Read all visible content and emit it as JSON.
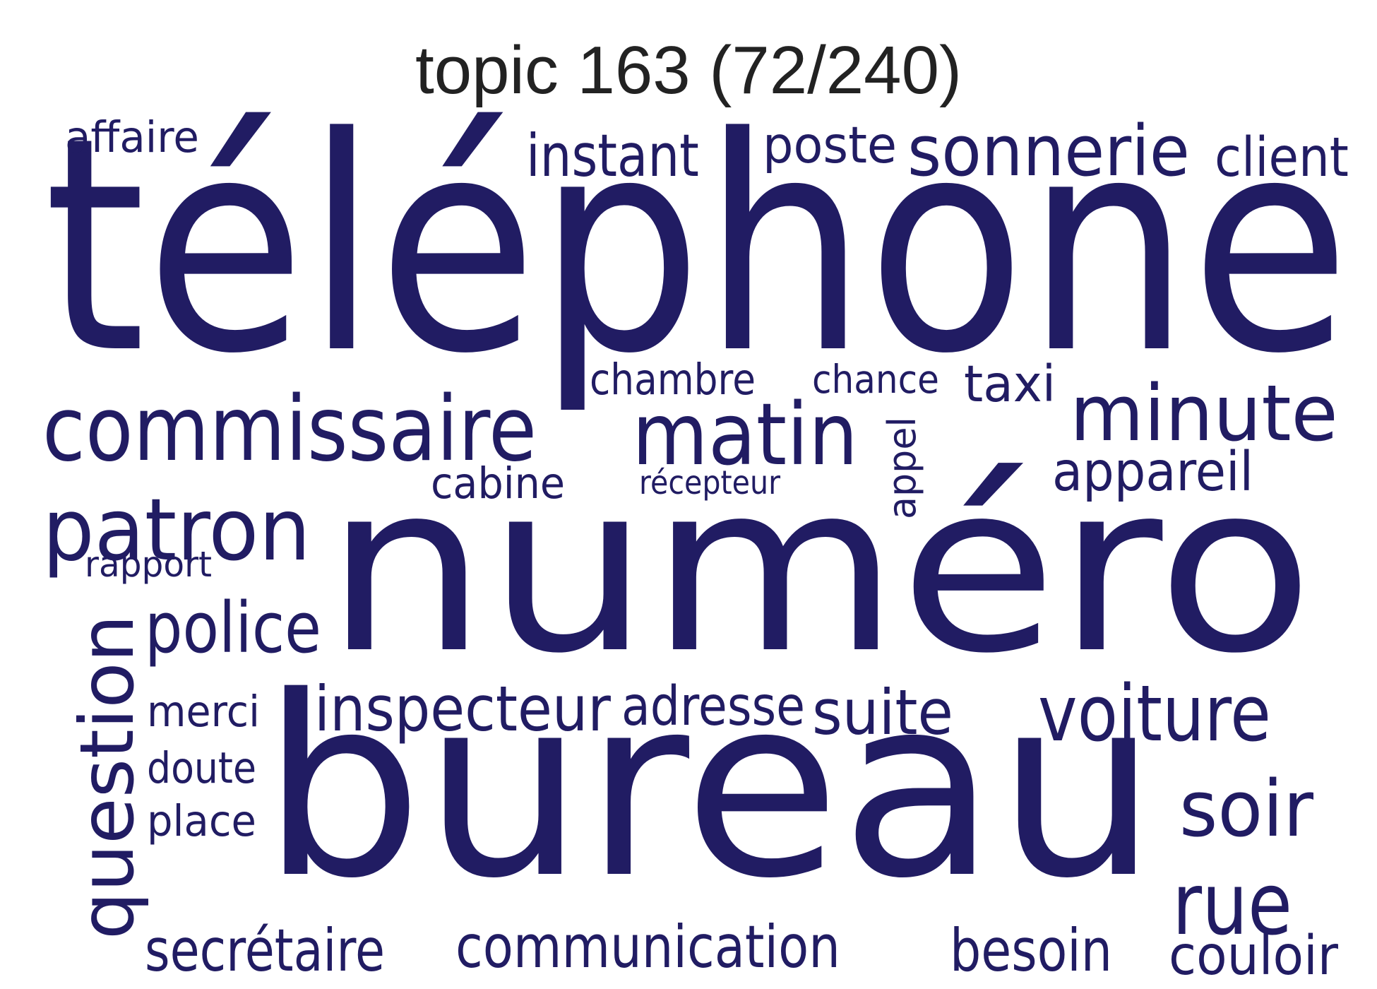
{
  "title": "topic 163 (72/240)",
  "word_color": "#211c63",
  "title_color": "#222222",
  "words": [
    {
      "text": "téléphone",
      "weight": 1.0
    },
    {
      "text": "numéro",
      "weight": 0.93
    },
    {
      "text": "bureau",
      "weight": 0.91
    },
    {
      "text": "commissaire",
      "weight": 0.3
    },
    {
      "text": "matin",
      "weight": 0.3
    },
    {
      "text": "minute",
      "weight": 0.27
    },
    {
      "text": "patron",
      "weight": 0.27
    },
    {
      "text": "question",
      "weight": 0.26
    },
    {
      "text": "voiture",
      "weight": 0.25
    },
    {
      "text": "soir",
      "weight": 0.25
    },
    {
      "text": "rue",
      "weight": 0.25
    },
    {
      "text": "sonnerie",
      "weight": 0.23
    },
    {
      "text": "inspecteur",
      "weight": 0.22
    },
    {
      "text": "police",
      "weight": 0.21
    },
    {
      "text": "suite",
      "weight": 0.2
    },
    {
      "text": "communication",
      "weight": 0.19
    },
    {
      "text": "adresse",
      "weight": 0.19
    },
    {
      "text": "appareil",
      "weight": 0.18
    },
    {
      "text": "instant",
      "weight": 0.18
    },
    {
      "text": "secrétaire",
      "weight": 0.18
    },
    {
      "text": "besoin",
      "weight": 0.18
    },
    {
      "text": "couloir",
      "weight": 0.17
    },
    {
      "text": "client",
      "weight": 0.17
    },
    {
      "text": "poste",
      "weight": 0.17
    },
    {
      "text": "taxi",
      "weight": 0.17
    },
    {
      "text": "cabine",
      "weight": 0.15
    },
    {
      "text": "affaire",
      "weight": 0.14
    },
    {
      "text": "merci",
      "weight": 0.14
    },
    {
      "text": "doute",
      "weight": 0.14
    },
    {
      "text": "place",
      "weight": 0.14
    },
    {
      "text": "chambre",
      "weight": 0.13
    },
    {
      "text": "chance",
      "weight": 0.13
    },
    {
      "text": "appel",
      "weight": 0.12
    },
    {
      "text": "rapport",
      "weight": 0.11
    },
    {
      "text": "récepteur",
      "weight": 0.1
    }
  ]
}
